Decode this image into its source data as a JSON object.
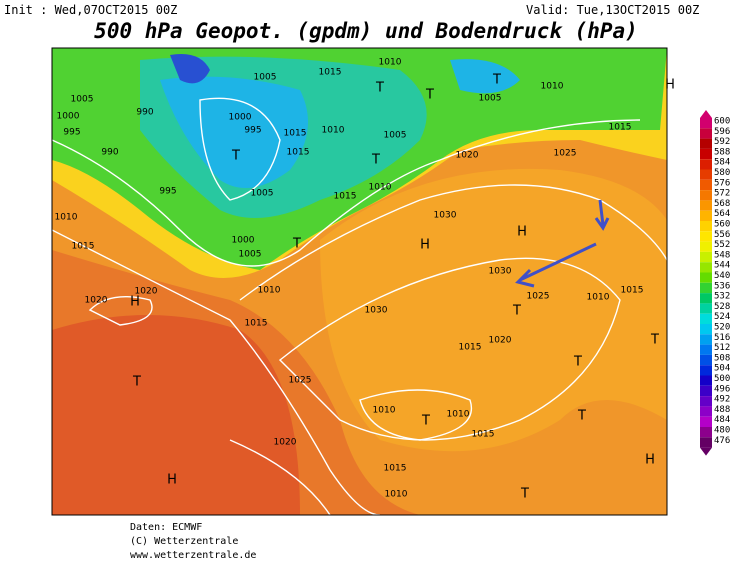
{
  "header": {
    "init": "Init : Wed,07OCT2015 00Z",
    "valid": "Valid: Tue,13OCT2015 00Z",
    "title": "500 hPa Geopot. (gpdm) und Bodendruck (hPa)"
  },
  "colorbar": {
    "levels": [
      600,
      596,
      592,
      588,
      584,
      580,
      576,
      572,
      568,
      564,
      560,
      556,
      552,
      548,
      544,
      540,
      536,
      532,
      528,
      524,
      520,
      516,
      512,
      508,
      504,
      500,
      496,
      492,
      488,
      484,
      480,
      476
    ],
    "colors": [
      "#d2006e",
      "#c8003c",
      "#b40000",
      "#c80000",
      "#dc1e00",
      "#e63c00",
      "#f05a00",
      "#f57800",
      "#fa9600",
      "#ffb400",
      "#ffd200",
      "#ffe600",
      "#f0f000",
      "#c8f000",
      "#96e600",
      "#64dc00",
      "#32d232",
      "#00c864",
      "#00d2a0",
      "#00dcdc",
      "#00c8f0",
      "#00a0f0",
      "#0078f0",
      "#0050e6",
      "#0028dc",
      "#1400c8",
      "#3c00c8",
      "#6400c8",
      "#8c00c8",
      "#b400c8",
      "#8c008c",
      "#640064"
    ]
  },
  "map": {
    "labels": [
      "1005",
      "1015",
      "1010",
      "T",
      "T",
      "T",
      "1005",
      "1010",
      "H",
      "1005",
      "990",
      "1000",
      "995",
      "1000",
      "995",
      "1015",
      "1010",
      "1005",
      "T",
      "T",
      "1015",
      "1020",
      "1025",
      "1015",
      "990",
      "995",
      "1010",
      "1015",
      "1010",
      "1005",
      "T",
      "1000",
      "1005",
      "1030",
      "H",
      "H",
      "1015",
      "1030",
      "1025",
      "1010",
      "1015",
      "1020",
      "H",
      "1020",
      "1010",
      "1015",
      "1030",
      "T",
      "1020",
      "1015",
      "T",
      "T",
      "T",
      "1025",
      "T",
      "1010",
      "1010",
      "1015",
      "T",
      "1020",
      "H",
      "1015",
      "H",
      "1010",
      "T"
    ]
  },
  "footer": {
    "source": "Daten: ECMWF",
    "copyright": "(C) Wetterzentrale",
    "url": "www.wetterzentrale.de"
  }
}
